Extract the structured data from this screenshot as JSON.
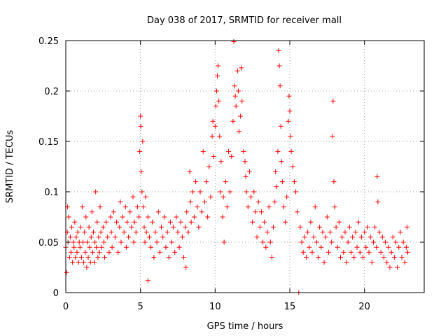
{
  "chart_data": {
    "type": "scatter",
    "title": "Day 038 of 2017, SRMTID for receiver mall",
    "xlabel": "GPS time / hours",
    "ylabel": "SRMTID / TECUs",
    "xlim": [
      0,
      24
    ],
    "ylim": [
      0,
      0.25
    ],
    "xticks": [
      0,
      5,
      10,
      15,
      20
    ],
    "xtick_labels": [
      "0",
      "5",
      "10",
      "15",
      "20"
    ],
    "yticks": [
      0,
      0.05,
      0.1,
      0.15,
      0.2,
      0.25
    ],
    "ytick_labels": [
      "0",
      "0.05",
      "0.1",
      "0.15",
      "0.2",
      "0.25"
    ],
    "grid": true,
    "marker": "plus",
    "color": "#ff0000",
    "series": [
      {
        "name": "SRMTID",
        "points": [
          [
            0.0,
            0.045
          ],
          [
            0.05,
            0.02
          ],
          [
            0.1,
            0.06
          ],
          [
            0.12,
            0.085
          ],
          [
            0.15,
            0.05
          ],
          [
            0.2,
            0.075
          ],
          [
            0.25,
            0.035
          ],
          [
            0.3,
            0.055
          ],
          [
            0.35,
            0.04
          ],
          [
            0.4,
            0.065
          ],
          [
            0.45,
            0.03
          ],
          [
            0.5,
            0.05
          ],
          [
            0.55,
            0.045
          ],
          [
            0.6,
            0.07
          ],
          [
            0.65,
            0.035
          ],
          [
            0.7,
            0.055
          ],
          [
            0.75,
            0.04
          ],
          [
            0.8,
            0.06
          ],
          [
            0.85,
            0.03
          ],
          [
            0.9,
            0.05
          ],
          [
            0.95,
            0.045
          ],
          [
            1.0,
            0.065
          ],
          [
            1.05,
            0.035
          ],
          [
            1.1,
            0.085
          ],
          [
            1.15,
            0.05
          ],
          [
            1.2,
            0.03
          ],
          [
            1.25,
            0.06
          ],
          [
            1.3,
            0.04
          ],
          [
            1.35,
            0.075
          ],
          [
            1.4,
            0.025
          ],
          [
            1.45,
            0.05
          ],
          [
            1.5,
            0.035
          ],
          [
            1.55,
            0.065
          ],
          [
            1.6,
            0.045
          ],
          [
            1.65,
            0.03
          ],
          [
            1.7,
            0.055
          ],
          [
            1.75,
            0.08
          ],
          [
            1.8,
            0.04
          ],
          [
            1.85,
            0.06
          ],
          [
            1.9,
            0.03
          ],
          [
            1.95,
            0.05
          ],
          [
            2.0,
            0.1
          ],
          [
            2.05,
            0.045
          ],
          [
            2.1,
            0.07
          ],
          [
            2.15,
            0.035
          ],
          [
            2.2,
            0.055
          ],
          [
            2.25,
            0.04
          ],
          [
            2.3,
            0.085
          ],
          [
            2.35,
            0.06
          ],
          [
            2.4,
            0.045
          ],
          [
            2.5,
            0.065
          ],
          [
            2.55,
            0.05
          ],
          [
            2.6,
            0.035
          ],
          [
            2.7,
            0.07
          ],
          [
            2.8,
            0.055
          ],
          [
            2.9,
            0.04
          ],
          [
            3.0,
            0.075
          ],
          [
            3.05,
            0.06
          ],
          [
            3.1,
            0.045
          ],
          [
            3.2,
            0.08
          ],
          [
            3.3,
            0.055
          ],
          [
            3.4,
            0.07
          ],
          [
            3.5,
            0.04
          ],
          [
            3.6,
            0.065
          ],
          [
            3.65,
            0.09
          ],
          [
            3.7,
            0.05
          ],
          [
            3.8,
            0.075
          ],
          [
            3.9,
            0.06
          ],
          [
            4.0,
            0.085
          ],
          [
            4.05,
            0.045
          ],
          [
            4.1,
            0.07
          ],
          [
            4.2,
            0.055
          ],
          [
            4.3,
            0.08
          ],
          [
            4.4,
            0.065
          ],
          [
            4.5,
            0.095
          ],
          [
            4.55,
            0.05
          ],
          [
            4.6,
            0.07
          ],
          [
            4.7,
            0.06
          ],
          [
            4.8,
            0.085
          ],
          [
            4.9,
            0.075
          ],
          [
            4.95,
            0.14
          ],
          [
            5.0,
            0.175
          ],
          [
            5.02,
            0.165
          ],
          [
            5.05,
            0.12
          ],
          [
            5.1,
            0.1
          ],
          [
            5.15,
            0.15
          ],
          [
            5.2,
            0.085
          ],
          [
            5.25,
            0.065
          ],
          [
            5.3,
            0.05
          ],
          [
            5.35,
            0.095
          ],
          [
            5.4,
            0.06
          ],
          [
            5.5,
            0.075
          ],
          [
            5.5,
            0.012
          ],
          [
            5.6,
            0.055
          ],
          [
            5.7,
            0.045
          ],
          [
            5.8,
            0.07
          ],
          [
            5.9,
            0.035
          ],
          [
            6.0,
            0.06
          ],
          [
            6.1,
            0.05
          ],
          [
            6.2,
            0.08
          ],
          [
            6.3,
            0.04
          ],
          [
            6.4,
            0.065
          ],
          [
            6.5,
            0.055
          ],
          [
            6.6,
            0.075
          ],
          [
            6.7,
            0.045
          ],
          [
            6.8,
            0.06
          ],
          [
            6.9,
            0.035
          ],
          [
            7.0,
            0.07
          ],
          [
            7.1,
            0.05
          ],
          [
            7.2,
            0.065
          ],
          [
            7.3,
            0.04
          ],
          [
            7.4,
            0.075
          ],
          [
            7.5,
            0.06
          ],
          [
            7.6,
            0.045
          ],
          [
            7.7,
            0.07
          ],
          [
            7.8,
            0.055
          ],
          [
            7.9,
            0.035
          ],
          [
            8.0,
            0.065
          ],
          [
            8.05,
            0.025
          ],
          [
            8.1,
            0.08
          ],
          [
            8.2,
            0.06
          ],
          [
            8.3,
            0.12
          ],
          [
            8.35,
            0.09
          ],
          [
            8.4,
            0.07
          ],
          [
            8.5,
            0.1
          ],
          [
            8.6,
            0.075
          ],
          [
            8.7,
            0.11
          ],
          [
            8.8,
            0.085
          ],
          [
            8.9,
            0.065
          ],
          [
            9.0,
            0.1
          ],
          [
            9.1,
            0.08
          ],
          [
            9.2,
            0.14
          ],
          [
            9.3,
            0.09
          ],
          [
            9.4,
            0.11
          ],
          [
            9.5,
            0.075
          ],
          [
            9.6,
            0.125
          ],
          [
            9.7,
            0.095
          ],
          [
            9.8,
            0.155
          ],
          [
            9.85,
            0.17
          ],
          [
            9.9,
            0.135
          ],
          [
            10.0,
            0.165
          ],
          [
            10.05,
            0.185
          ],
          [
            10.1,
            0.2
          ],
          [
            10.15,
            0.215
          ],
          [
            10.2,
            0.225
          ],
          [
            10.25,
            0.19
          ],
          [
            10.3,
            0.155
          ],
          [
            10.35,
            0.1
          ],
          [
            10.4,
            0.13
          ],
          [
            10.5,
            0.075
          ],
          [
            10.55,
            0.095
          ],
          [
            10.6,
            0.05
          ],
          [
            10.7,
            0.11
          ],
          [
            10.8,
            0.085
          ],
          [
            10.9,
            0.14
          ],
          [
            11.0,
            0.1
          ],
          [
            11.1,
            0.135
          ],
          [
            11.2,
            0.17
          ],
          [
            11.25,
            0.249
          ],
          [
            11.3,
            0.205
          ],
          [
            11.35,
            0.195
          ],
          [
            11.4,
            0.185
          ],
          [
            11.5,
            0.22
          ],
          [
            11.55,
            0.2
          ],
          [
            11.6,
            0.16
          ],
          [
            11.7,
            0.175
          ],
          [
            11.75,
            0.223
          ],
          [
            11.8,
            0.19
          ],
          [
            11.9,
            0.14
          ],
          [
            12.0,
            0.13
          ],
          [
            12.05,
            0.115
          ],
          [
            12.1,
            0.1
          ],
          [
            12.2,
            0.085
          ],
          [
            12.3,
            0.12
          ],
          [
            12.4,
            0.095
          ],
          [
            12.5,
            0.07
          ],
          [
            12.6,
            0.1
          ],
          [
            12.7,
            0.08
          ],
          [
            12.8,
            0.055
          ],
          [
            12.9,
            0.09
          ],
          [
            13.0,
            0.065
          ],
          [
            13.1,
            0.08
          ],
          [
            13.2,
            0.05
          ],
          [
            13.3,
            0.07
          ],
          [
            13.4,
            0.045
          ],
          [
            13.5,
            0.06
          ],
          [
            13.6,
            0.085
          ],
          [
            13.7,
            0.05
          ],
          [
            13.8,
            0.035
          ],
          [
            13.9,
            0.065
          ],
          [
            14.0,
            0.09
          ],
          [
            14.05,
            0.12
          ],
          [
            14.1,
            0.105
          ],
          [
            14.2,
            0.14
          ],
          [
            14.25,
            0.24
          ],
          [
            14.3,
            0.225
          ],
          [
            14.35,
            0.205
          ],
          [
            14.4,
            0.165
          ],
          [
            14.45,
            0.13
          ],
          [
            14.5,
            0.11
          ],
          [
            14.6,
            0.085
          ],
          [
            14.7,
            0.07
          ],
          [
            14.8,
            0.095
          ],
          [
            14.9,
            0.17
          ],
          [
            14.95,
            0.195
          ],
          [
            15.0,
            0.18
          ],
          [
            15.05,
            0.155
          ],
          [
            15.1,
            0.14
          ],
          [
            15.2,
            0.125
          ],
          [
            15.3,
            0.11
          ],
          [
            15.4,
            0.1
          ],
          [
            15.5,
            0.08
          ],
          [
            15.6,
            0.0
          ],
          [
            15.7,
            0.065
          ],
          [
            15.8,
            0.05
          ],
          [
            15.9,
            0.04
          ],
          [
            16.0,
            0.055
          ],
          [
            16.1,
            0.035
          ],
          [
            16.2,
            0.06
          ],
          [
            16.3,
            0.045
          ],
          [
            16.4,
            0.07
          ],
          [
            16.5,
            0.04
          ],
          [
            16.6,
            0.055
          ],
          [
            16.7,
            0.085
          ],
          [
            16.8,
            0.05
          ],
          [
            16.9,
            0.035
          ],
          [
            17.0,
            0.065
          ],
          [
            17.1,
            0.045
          ],
          [
            17.2,
            0.06
          ],
          [
            17.3,
            0.03
          ],
          [
            17.4,
            0.055
          ],
          [
            17.5,
            0.075
          ],
          [
            17.6,
            0.04
          ],
          [
            17.7,
            0.06
          ],
          [
            17.8,
            0.05
          ],
          [
            17.85,
            0.155
          ],
          [
            17.9,
            0.19
          ],
          [
            17.95,
            0.11
          ],
          [
            18.0,
            0.085
          ],
          [
            18.1,
            0.065
          ],
          [
            18.2,
            0.045
          ],
          [
            18.3,
            0.07
          ],
          [
            18.4,
            0.035
          ],
          [
            18.5,
            0.055
          ],
          [
            18.6,
            0.04
          ],
          [
            18.7,
            0.06
          ],
          [
            18.8,
            0.03
          ],
          [
            18.9,
            0.05
          ],
          [
            19.0,
            0.065
          ],
          [
            19.1,
            0.04
          ],
          [
            19.2,
            0.055
          ],
          [
            19.3,
            0.035
          ],
          [
            19.4,
            0.06
          ],
          [
            19.5,
            0.045
          ],
          [
            19.6,
            0.07
          ],
          [
            19.7,
            0.04
          ],
          [
            19.8,
            0.055
          ],
          [
            19.9,
            0.035
          ],
          [
            20.0,
            0.06
          ],
          [
            20.1,
            0.045
          ],
          [
            20.2,
            0.065
          ],
          [
            20.3,
            0.04
          ],
          [
            20.4,
            0.055
          ],
          [
            20.5,
            0.03
          ],
          [
            20.6,
            0.05
          ],
          [
            20.7,
            0.065
          ],
          [
            20.8,
            0.045
          ],
          [
            20.85,
            0.115
          ],
          [
            20.9,
            0.09
          ],
          [
            21.0,
            0.06
          ],
          [
            21.1,
            0.04
          ],
          [
            21.2,
            0.055
          ],
          [
            21.3,
            0.035
          ],
          [
            21.4,
            0.05
          ],
          [
            21.5,
            0.03
          ],
          [
            21.6,
            0.045
          ],
          [
            21.7,
            0.025
          ],
          [
            21.8,
            0.04
          ],
          [
            21.9,
            0.055
          ],
          [
            22.0,
            0.035
          ],
          [
            22.1,
            0.05
          ],
          [
            22.2,
            0.025
          ],
          [
            22.3,
            0.045
          ],
          [
            22.4,
            0.06
          ],
          [
            22.5,
            0.035
          ],
          [
            22.6,
            0.05
          ],
          [
            22.7,
            0.03
          ],
          [
            22.8,
            0.045
          ],
          [
            22.85,
            0.065
          ],
          [
            22.9,
            0.04
          ]
        ]
      }
    ]
  }
}
